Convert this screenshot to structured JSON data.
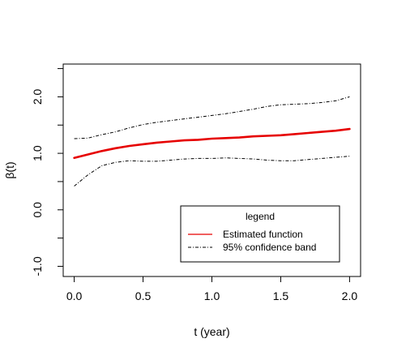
{
  "chart_data": {
    "type": "line",
    "xlabel": "t (year)",
    "ylabel": "β(t)",
    "xlim": [
      -0.08,
      2.08
    ],
    "ylim": [
      -1.18,
      2.58
    ],
    "x_ticks": [
      0.0,
      0.5,
      1.0,
      1.5,
      2.0
    ],
    "x_tick_labels": [
      "0.0",
      "0.5",
      "1.0",
      "1.5",
      "2.0"
    ],
    "y_ticks": [
      -1.0,
      0.0,
      1.0,
      2.0
    ],
    "y_tick_labels": [
      "-1.0",
      "0.0",
      "1.0",
      "2.0"
    ],
    "grid": false,
    "legend": {
      "title": "legend",
      "placement": "bottom-right",
      "entries": [
        "Estimated function",
        "95% confidence band"
      ]
    },
    "series": [
      {
        "name": "Estimated function",
        "color": "#e60000",
        "style": "solid",
        "x": [
          0.0,
          0.1,
          0.2,
          0.3,
          0.4,
          0.5,
          0.6,
          0.7,
          0.8,
          0.9,
          1.0,
          1.1,
          1.2,
          1.3,
          1.4,
          1.5,
          1.6,
          1.7,
          1.8,
          1.9,
          2.0
        ],
        "y": [
          0.92,
          0.98,
          1.04,
          1.09,
          1.13,
          1.16,
          1.19,
          1.21,
          1.23,
          1.24,
          1.26,
          1.27,
          1.28,
          1.3,
          1.31,
          1.32,
          1.34,
          1.36,
          1.38,
          1.4,
          1.43
        ]
      },
      {
        "name": "95% confidence band",
        "color": "#000000",
        "style": "dashdot",
        "x": [
          0.0,
          0.1,
          0.2,
          0.3,
          0.4,
          0.5,
          0.6,
          0.7,
          0.8,
          0.9,
          1.0,
          1.1,
          1.2,
          1.3,
          1.4,
          1.5,
          1.6,
          1.7,
          1.8,
          1.9,
          2.0
        ],
        "y": [
          1.26,
          1.27,
          1.33,
          1.38,
          1.45,
          1.51,
          1.55,
          1.58,
          1.61,
          1.64,
          1.67,
          1.7,
          1.74,
          1.78,
          1.83,
          1.86,
          1.87,
          1.88,
          1.9,
          1.93,
          2.0
        ]
      },
      {
        "name": "95% confidence band",
        "color": "#000000",
        "style": "dashdot",
        "x": [
          0.0,
          0.1,
          0.2,
          0.3,
          0.4,
          0.5,
          0.6,
          0.7,
          0.8,
          0.9,
          1.0,
          1.1,
          1.2,
          1.3,
          1.4,
          1.5,
          1.6,
          1.7,
          1.8,
          1.9,
          2.0
        ],
        "y": [
          0.42,
          0.62,
          0.78,
          0.84,
          0.87,
          0.86,
          0.86,
          0.88,
          0.9,
          0.91,
          0.91,
          0.92,
          0.91,
          0.9,
          0.88,
          0.87,
          0.87,
          0.89,
          0.91,
          0.93,
          0.95
        ]
      }
    ]
  }
}
